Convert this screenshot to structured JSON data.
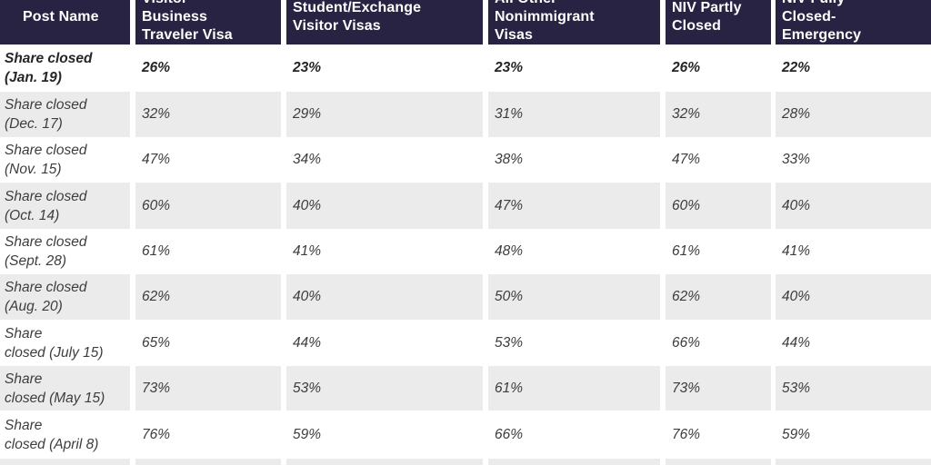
{
  "colors": {
    "header_bg": "#282343",
    "header_text": "#ffffff",
    "stripe_bg": "#ebebeb",
    "body_text": "#3d3d3d",
    "first_row_text": "#262626"
  },
  "table": {
    "header_cells": [
      "Post Name",
      "Visitor\nBusiness\nTraveler Visa",
      "Student/Exchange\nVisitor Visas",
      "All Other\nNonimmigrant\nVisas",
      "NIV Partly\nClosed",
      "NIV Fully\nClosed-\nEmergency"
    ],
    "rows": [
      {
        "label": "Share closed\n(Jan. 19)",
        "values": [
          "26%",
          "23%",
          "23%",
          "26%",
          "22%"
        ],
        "bold": true
      },
      {
        "label": "Share closed\n(Dec. 17)",
        "values": [
          "32%",
          "29%",
          "31%",
          "32%",
          "28%"
        ],
        "bold": false
      },
      {
        "label": "Share closed\n(Nov. 15)",
        "values": [
          "47%",
          "34%",
          "38%",
          "47%",
          "33%"
        ],
        "bold": false
      },
      {
        "label": "Share closed\n(Oct. 14)",
        "values": [
          "60%",
          "40%",
          "47%",
          "60%",
          "40%"
        ],
        "bold": false
      },
      {
        "label": "Share closed\n(Sept. 28)",
        "values": [
          "61%",
          "41%",
          "48%",
          "61%",
          "41%"
        ],
        "bold": false
      },
      {
        "label": "Share closed\n(Aug. 20)",
        "values": [
          "62%",
          "40%",
          "50%",
          "62%",
          "40%"
        ],
        "bold": false
      },
      {
        "label": "Share\nclosed (July 15)",
        "values": [
          "65%",
          "44%",
          "53%",
          "66%",
          "44%"
        ],
        "bold": false
      },
      {
        "label": "Share\nclosed (May 15)",
        "values": [
          "73%",
          "53%",
          "61%",
          "73%",
          "53%"
        ],
        "bold": false
      },
      {
        "label": "Share\nclosed (April 8)",
        "values": [
          "76%",
          "59%",
          "66%",
          "76%",
          "59%"
        ],
        "bold": false
      },
      {
        "label": "",
        "values": [
          "",
          "",
          "",
          "",
          ""
        ],
        "bold": false,
        "partial": true
      }
    ]
  },
  "chart_data": {
    "type": "table",
    "title": "",
    "columns": [
      "Post Name",
      "Visitor Business Traveler Visa",
      "Student/Exchange Visitor Visas",
      "All Other Nonimmigrant Visas",
      "NIV Partly Closed",
      "NIV Fully Closed-Emergency"
    ],
    "rows": [
      [
        "Share closed (Jan. 19)",
        "26%",
        "23%",
        "23%",
        "26%",
        "22%"
      ],
      [
        "Share closed (Dec. 17)",
        "32%",
        "29%",
        "31%",
        "32%",
        "28%"
      ],
      [
        "Share closed (Nov. 15)",
        "47%",
        "34%",
        "38%",
        "47%",
        "33%"
      ],
      [
        "Share closed (Oct. 14)",
        "60%",
        "40%",
        "47%",
        "60%",
        "40%"
      ],
      [
        "Share closed (Sept. 28)",
        "61%",
        "41%",
        "48%",
        "61%",
        "41%"
      ],
      [
        "Share closed (Aug. 20)",
        "62%",
        "40%",
        "50%",
        "62%",
        "40%"
      ],
      [
        "Share closed (July 15)",
        "65%",
        "44%",
        "53%",
        "66%",
        "44%"
      ],
      [
        "Share closed (May 15)",
        "73%",
        "53%",
        "61%",
        "73%",
        "53%"
      ],
      [
        "Share closed (April 8)",
        "76%",
        "59%",
        "66%",
        "76%",
        "59%"
      ]
    ],
    "layout_hints": {
      "header_style": "dark navy background, white bold text, top edge cropped",
      "stripes": "alternating white / light gray rows",
      "first_data_row": "bold italic emphasis",
      "value_style": "italic"
    }
  }
}
